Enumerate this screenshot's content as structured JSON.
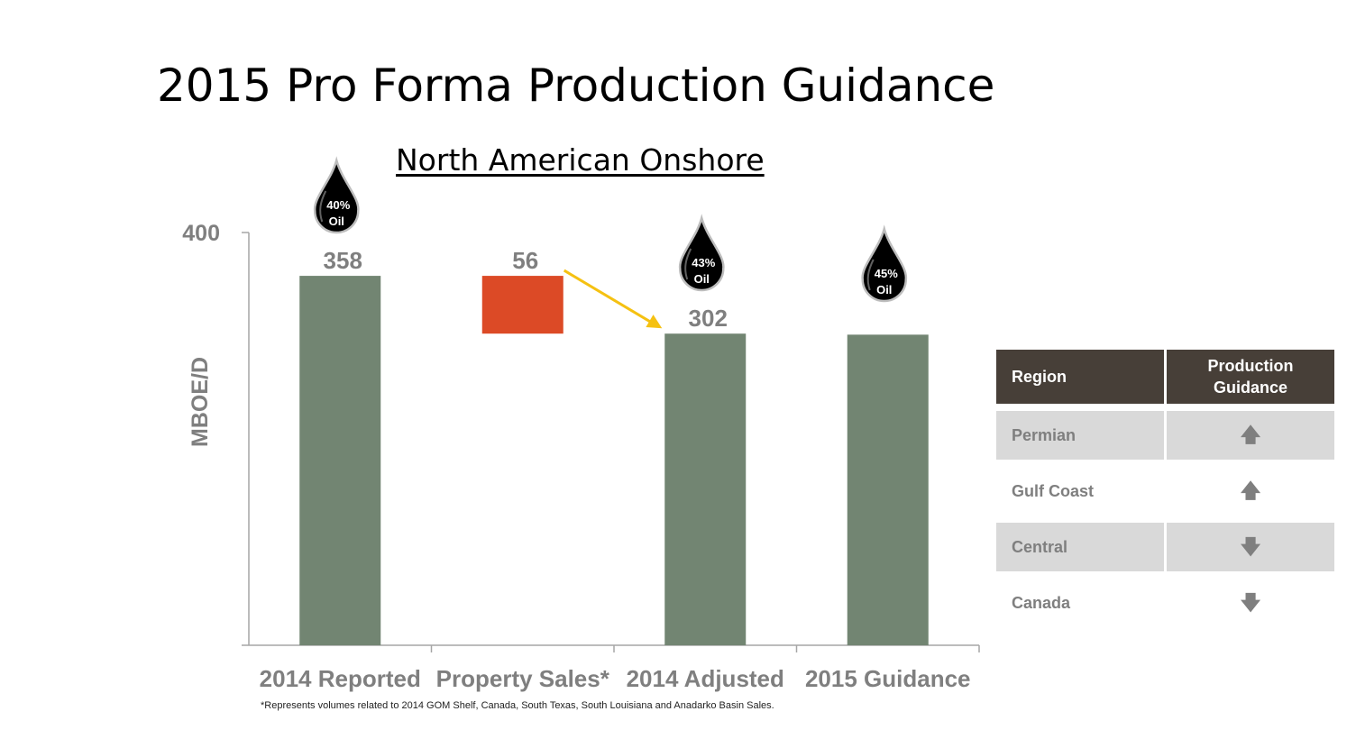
{
  "title": "2015 Pro Forma Production Guidance",
  "chart_data": {
    "type": "bar",
    "subtitle": "North American Onshore",
    "ylabel": "MBOE/D",
    "ylim": [
      0,
      400
    ],
    "y_tick_labels": [
      "400"
    ],
    "categories": [
      "2014 Reported",
      "Property Sales*",
      "2014 Adjusted",
      "2015 Guidance"
    ],
    "bars": [
      {
        "category": "2014 Reported",
        "low": 0,
        "high": 358,
        "label": "358",
        "oil_badge": [
          "40%",
          "Oil"
        ]
      },
      {
        "category": "Property Sales*",
        "low": 302,
        "high": 358,
        "label": "56",
        "oil_badge": null
      },
      {
        "category": "2014 Adjusted",
        "low": 0,
        "high": 302,
        "label": "302",
        "oil_badge": [
          "43%",
          "Oil"
        ]
      },
      {
        "category": "2015 Guidance",
        "low": 0,
        "high": 301,
        "label": "",
        "oil_badge": [
          "45%",
          "Oil"
        ]
      }
    ],
    "colors": {
      "total": "#728572",
      "decrease": "#dc4a26",
      "arrow": "#f5c112",
      "drop": "#000000"
    }
  },
  "footnote": "*Represents volumes related to 2014 GOM Shelf, Canada, South Texas, South Louisiana and Anadarko Basin Sales.",
  "table": {
    "headers": [
      "Region",
      "Production\nGuidance"
    ],
    "rows": [
      {
        "region": "Permian",
        "guidance": "up-arrow-icon",
        "glyph": "🡅"
      },
      {
        "region": "Gulf Coast",
        "guidance": "up-arrow-icon",
        "glyph": "🡅"
      },
      {
        "region": "Central",
        "guidance": "down-arrow-icon",
        "glyph": "🡇"
      },
      {
        "region": "Canada",
        "guidance": "down-arrow-icon",
        "glyph": "🡇"
      }
    ]
  }
}
